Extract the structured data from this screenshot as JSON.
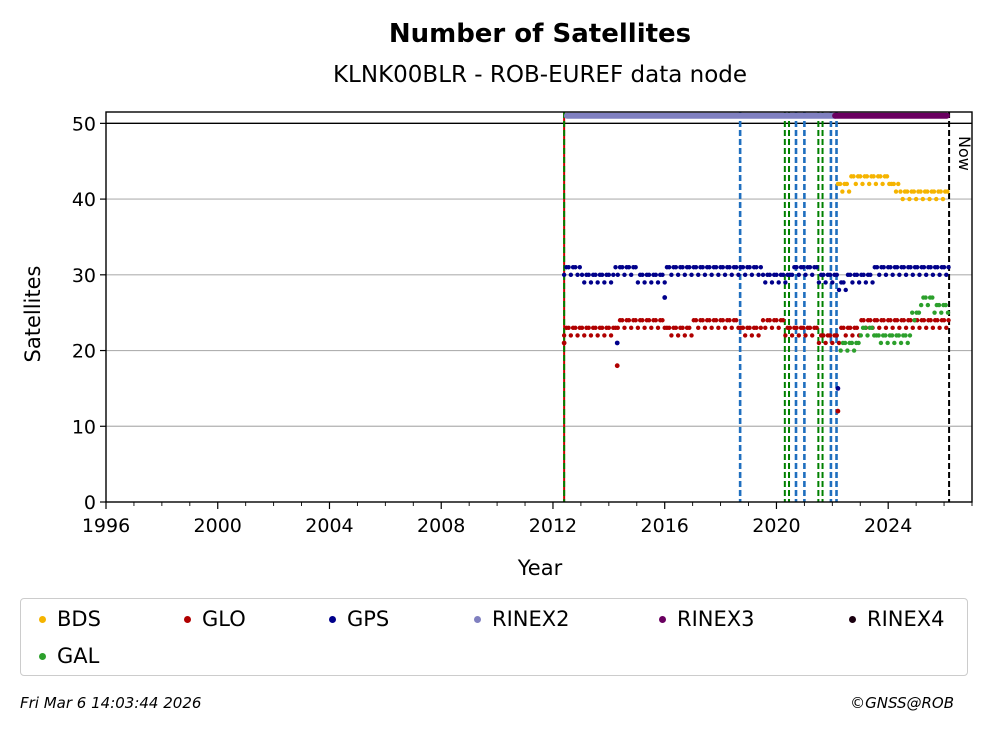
{
  "chart_data": {
    "type": "scatter",
    "title": "Number of Satellites",
    "subtitle": "KLNK00BLR - ROB-EUREF data node",
    "xlabel": "Year",
    "ylabel": "Satellites",
    "xlim": [
      1996,
      2027
    ],
    "ylim": [
      0,
      51.5
    ],
    "x_ticks": [
      "1996",
      "2000",
      "2004",
      "2008",
      "2012",
      "2016",
      "2020",
      "2024"
    ],
    "y_ticks": [
      "0",
      "10",
      "20",
      "30",
      "40",
      "50"
    ],
    "grid": "horizontal",
    "now_label": "Now",
    "now_year": 2026.18,
    "series": [
      {
        "name": "BDS",
        "color": "#f5b400",
        "start": 2022.2,
        "end": 2026.18,
        "segments": [
          [
            2022.2,
            42
          ],
          [
            2022.6,
            43
          ],
          [
            2023.5,
            43
          ],
          [
            2024.1,
            42
          ],
          [
            2024.4,
            41
          ],
          [
            2025.2,
            41
          ],
          [
            2026.18,
            41
          ]
        ]
      },
      {
        "name": "GLO",
        "color": "#b00000",
        "start": 2012.4,
        "end": 2026.18,
        "segments": [
          [
            2012.4,
            23
          ],
          [
            2013.5,
            23
          ],
          [
            2014.3,
            24
          ],
          [
            2016.0,
            23
          ],
          [
            2017.0,
            24
          ],
          [
            2018.7,
            23
          ],
          [
            2019.5,
            24
          ],
          [
            2020.3,
            23
          ],
          [
            2021.5,
            22
          ],
          [
            2022.3,
            23
          ],
          [
            2023.0,
            24
          ],
          [
            2025.0,
            24
          ],
          [
            2026.18,
            24
          ]
        ],
        "outliers": [
          [
            2014.3,
            18
          ],
          [
            2022.2,
            12
          ],
          [
            2012.4,
            21
          ]
        ]
      },
      {
        "name": "GPS",
        "color": "#00008b",
        "start": 2012.4,
        "end": 2026.18,
        "segments": [
          [
            2012.4,
            31
          ],
          [
            2013.0,
            30
          ],
          [
            2014.2,
            31
          ],
          [
            2015.0,
            30
          ],
          [
            2016.0,
            31
          ],
          [
            2018.5,
            31
          ],
          [
            2019.5,
            30
          ],
          [
            2020.5,
            31
          ],
          [
            2021.5,
            30
          ],
          [
            2022.2,
            29
          ],
          [
            2022.5,
            30
          ],
          [
            2023.5,
            31
          ],
          [
            2025.5,
            31
          ],
          [
            2026.18,
            31
          ]
        ],
        "outliers": [
          [
            2014.3,
            21
          ],
          [
            2016.0,
            27
          ],
          [
            2022.2,
            15
          ]
        ]
      },
      {
        "name": "RINEX2",
        "color": "#8080c0",
        "level": 51,
        "start": 2012.5,
        "end": 2022.1
      },
      {
        "name": "RINEX3",
        "color": "#6a0060",
        "level": 51,
        "start": 2022.1,
        "end": 2026.1
      },
      {
        "name": "RINEX4",
        "color": "#1a0010"
      },
      {
        "name": "GAL",
        "color": "#2ca02c",
        "start": 2022.3,
        "end": 2026.18,
        "segments": [
          [
            2022.3,
            21
          ],
          [
            2022.8,
            21
          ],
          [
            2023.0,
            23
          ],
          [
            2023.5,
            22
          ],
          [
            2024.5,
            22
          ],
          [
            2024.8,
            25
          ],
          [
            2025.1,
            27
          ],
          [
            2025.6,
            26
          ],
          [
            2026.0,
            26
          ],
          [
            2026.18,
            26
          ]
        ]
      }
    ],
    "event_lines": [
      {
        "year": 2012.4,
        "color": "#cc0000",
        "style": "solid"
      },
      {
        "year": 2012.4,
        "color": "#008000",
        "style": "dashed"
      },
      {
        "year": 2018.7,
        "color": "#1f6fbf",
        "style": "dashed"
      },
      {
        "year": 2020.3,
        "color": "#008000",
        "style": "dashed"
      },
      {
        "year": 2020.45,
        "color": "#008000",
        "style": "dashed"
      },
      {
        "year": 2020.7,
        "color": "#1f6fbf",
        "style": "dashed"
      },
      {
        "year": 2021.0,
        "color": "#1f6fbf",
        "style": "dashed"
      },
      {
        "year": 2021.5,
        "color": "#008000",
        "style": "dashed"
      },
      {
        "year": 2021.65,
        "color": "#008000",
        "style": "dashed"
      },
      {
        "year": 2021.95,
        "color": "#1f6fbf",
        "style": "dashed"
      },
      {
        "year": 2022.15,
        "color": "#1f6fbf",
        "style": "dashed"
      }
    ]
  },
  "footer": {
    "timestamp": "Fri Mar  6 14:03:44 2026",
    "credit": "©GNSS@ROB"
  }
}
